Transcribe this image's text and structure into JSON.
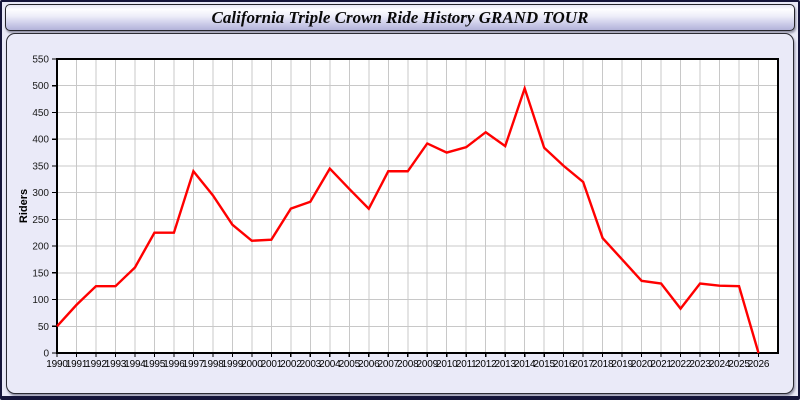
{
  "header": {
    "title": "California Triple Crown Ride History GRAND TOUR"
  },
  "chart_data": {
    "type": "line",
    "title": "California Triple Crown Ride History GRAND TOUR",
    "xlabel": "",
    "ylabel": "Riders",
    "series_name": "Riders",
    "x": [
      1990,
      1991,
      1992,
      1993,
      1994,
      1995,
      1996,
      1997,
      1998,
      1999,
      2000,
      2001,
      2002,
      2003,
      2004,
      2005,
      2006,
      2007,
      2008,
      2009,
      2010,
      2011,
      2012,
      2013,
      2014,
      2015,
      2016,
      2017,
      2018,
      2019,
      2020,
      2021,
      2022,
      2023,
      2024,
      2025,
      2026
    ],
    "values": [
      50,
      90,
      125,
      125,
      160,
      225,
      225,
      340,
      295,
      240,
      210,
      212,
      270,
      283,
      345,
      307,
      270,
      340,
      340,
      392,
      375,
      385,
      413,
      387,
      495,
      384,
      350,
      320,
      215,
      175,
      135,
      130,
      83,
      130,
      126,
      125,
      0
    ],
    "xlim": [
      1990,
      2027
    ],
    "ylim": [
      0,
      550
    ],
    "ytick_step": 50,
    "grid": true,
    "legend_position": "none"
  },
  "colors": {
    "line": "#ff0000",
    "plot_background": "#ffffff",
    "grid": "#c8c8c8",
    "axis": "#000000",
    "tick_label": "#1a1a1a",
    "panel_background": "#eaeaf8",
    "frame": "#15153a"
  }
}
